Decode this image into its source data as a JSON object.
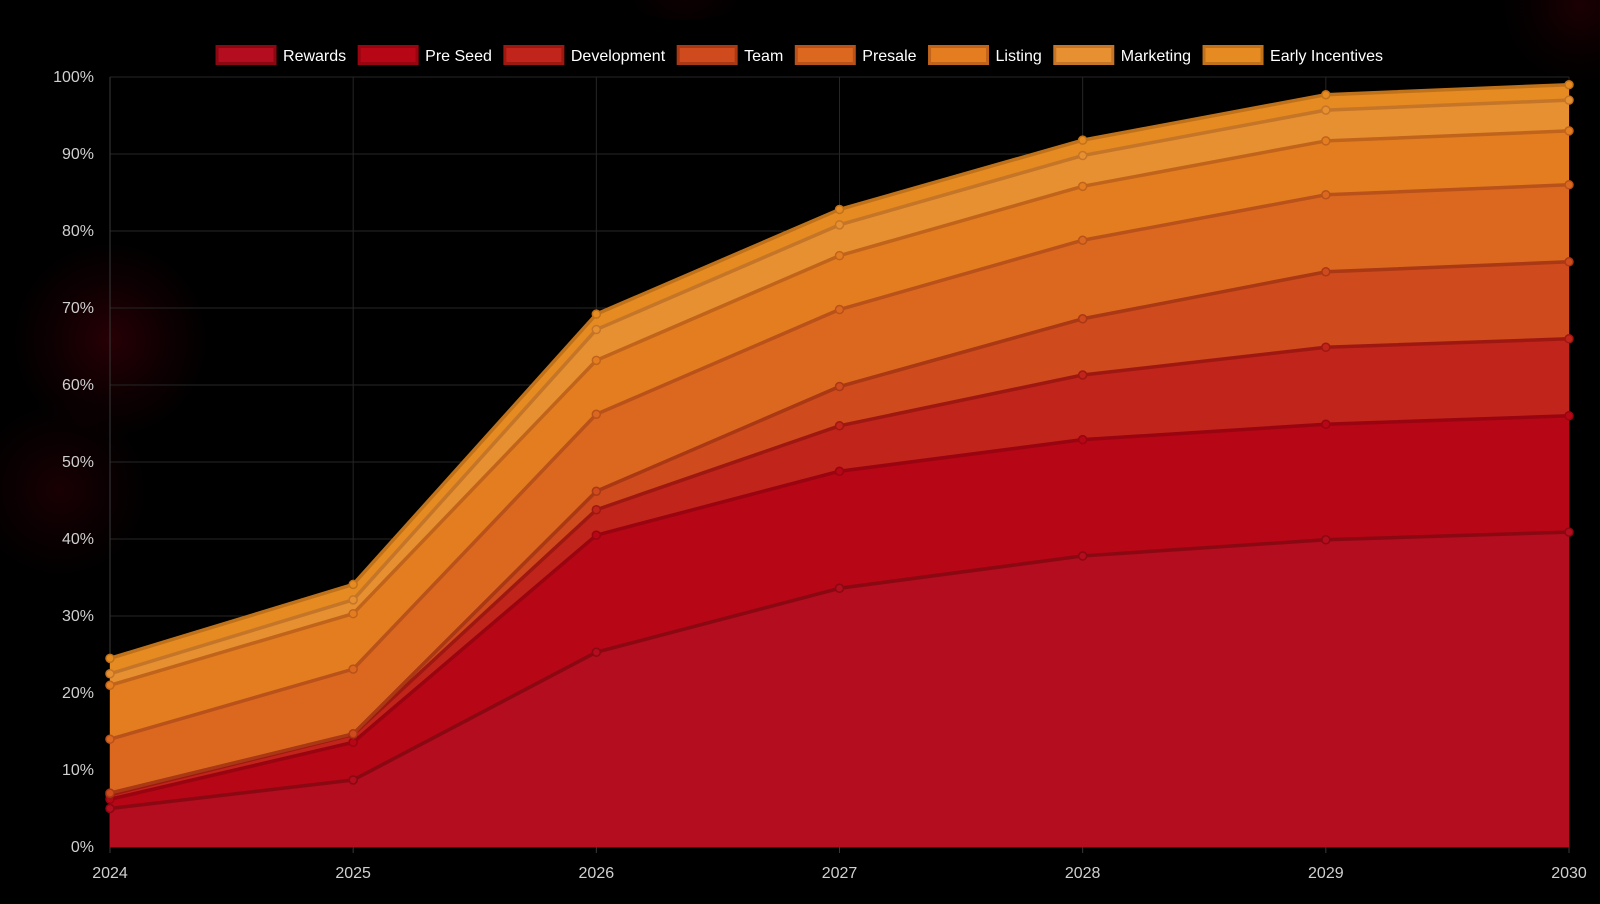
{
  "chart_data": {
    "type": "area",
    "stacked": true,
    "title": "",
    "xlabel": "",
    "ylabel": "",
    "x": [
      "2024",
      "2025",
      "2026",
      "2027",
      "2028",
      "2029",
      "2030"
    ],
    "ylim": [
      0,
      100
    ],
    "y_ticks": [
      "0%",
      "10%",
      "20%",
      "30%",
      "40%",
      "50%",
      "60%",
      "70%",
      "80%",
      "90%",
      "100%"
    ],
    "grid": true,
    "legend_position": "top",
    "series": [
      {
        "name": "Rewards",
        "color": "#b30d1f",
        "line_color": "#8a0812",
        "values": [
          5,
          8.7,
          25.3,
          33.6,
          37.8,
          39.9,
          40.9
        ]
      },
      {
        "name": "Pre Seed",
        "color": "#b70615",
        "line_color": "#980510",
        "values": [
          1.2,
          4.9,
          15.2,
          15.2,
          15.1,
          15.0,
          15.1
        ]
      },
      {
        "name": "Development",
        "color": "#c1241a",
        "line_color": "#9e1812",
        "values": [
          0.6,
          1.0,
          3.3,
          5.9,
          8.4,
          10.0,
          10.0
        ]
      },
      {
        "name": "Team",
        "color": "#cf4a1c",
        "line_color": "#a93814",
        "values": [
          0.2,
          0.1,
          2.4,
          5.1,
          7.3,
          9.8,
          10.0
        ]
      },
      {
        "name": "Presale",
        "color": "#dc6820",
        "line_color": "#b8521a",
        "values": [
          7.0,
          8.4,
          10.0,
          10.0,
          10.2,
          10.0,
          10.0
        ]
      },
      {
        "name": "Listing",
        "color": "#e47d20",
        "line_color": "#c0641c",
        "values": [
          7.0,
          7.2,
          7.0,
          7.0,
          7.0,
          7.0,
          7.0
        ]
      },
      {
        "name": "Marketing",
        "color": "#e79032",
        "line_color": "#c47528",
        "values": [
          1.5,
          1.8,
          4.0,
          4.0,
          4.0,
          4.0,
          4.0
        ]
      },
      {
        "name": "Early Incentives",
        "color": "#e68a22",
        "line_color": "#c0721a",
        "values": [
          2.0,
          2.0,
          2.0,
          2.0,
          2.0,
          2.0,
          2.0
        ]
      }
    ]
  }
}
